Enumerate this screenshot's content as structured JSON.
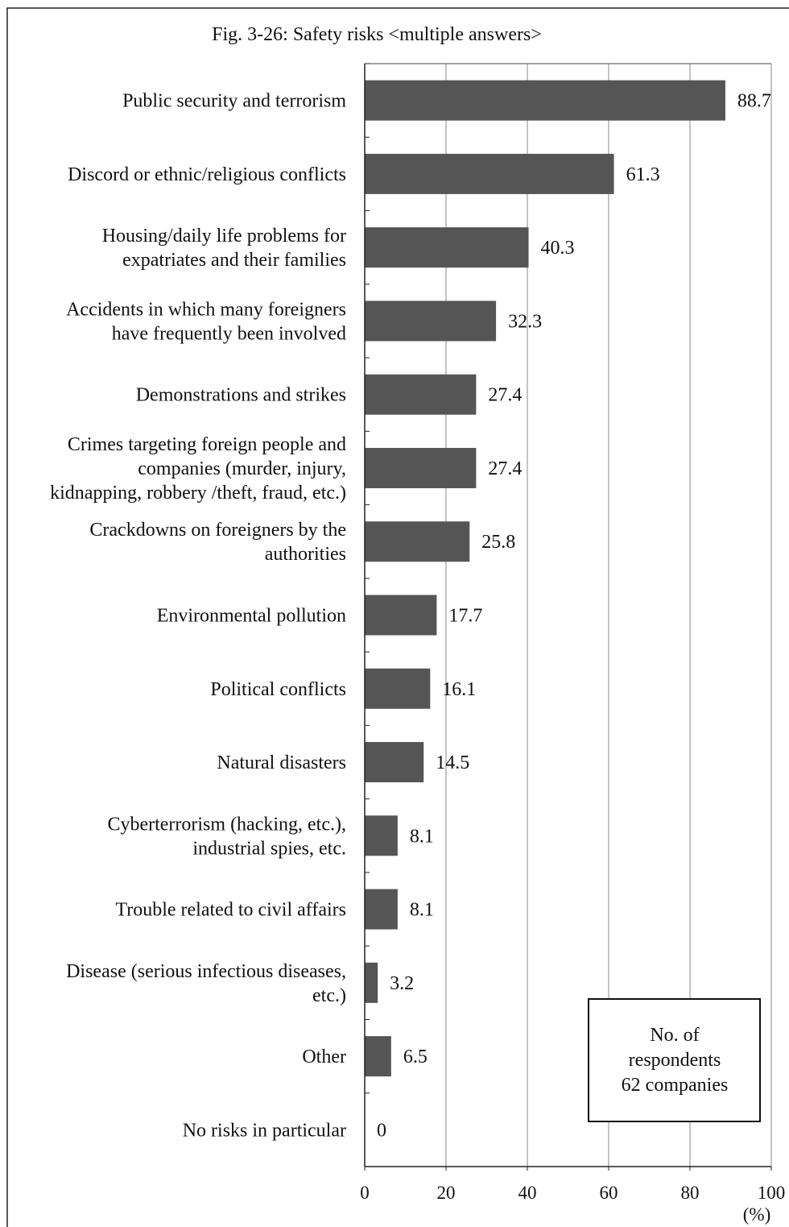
{
  "chart_data": {
    "type": "bar",
    "orientation": "horizontal",
    "title": "Fig. 3-26: Safety risks <multiple answers>",
    "unit_label": "(%)",
    "categories": [
      [
        "Public security and terrorism"
      ],
      [
        "Discord or ethnic/religious conflicts"
      ],
      [
        "Housing/daily life problems for",
        "expatriates and their families"
      ],
      [
        "Accidents in which many foreigners",
        "have frequently been involved"
      ],
      [
        "Demonstrations and strikes"
      ],
      [
        "Crimes targeting foreign people and",
        "companies (murder, injury,",
        "kidnapping, robbery /theft, fraud, etc.)"
      ],
      [
        "Crackdowns on foreigners by the",
        "authorities"
      ],
      [
        "Environmental pollution"
      ],
      [
        "Political conflicts"
      ],
      [
        "Natural disasters"
      ],
      [
        "Cyberterrorism (hacking, etc.),",
        "industrial spies, etc."
      ],
      [
        "Trouble related to civil affairs"
      ],
      [
        "Disease (serious infectious diseases,",
        "etc.)"
      ],
      [
        "Other"
      ],
      [
        "No risks in particular"
      ]
    ],
    "values": [
      88.7,
      61.3,
      40.3,
      32.3,
      27.4,
      27.4,
      25.8,
      17.7,
      16.1,
      14.5,
      8.1,
      8.1,
      3.2,
      6.5,
      0
    ],
    "value_labels": [
      "88.7",
      "61.3",
      "40.3",
      "32.3",
      "27.4",
      "27.4",
      "25.8",
      "17.7",
      "16.1",
      "14.5",
      "8.1",
      "8.1",
      "3.2",
      "6.5",
      "0"
    ],
    "xlim": [
      0,
      100
    ],
    "xticks": [
      0,
      20,
      40,
      60,
      80,
      100
    ],
    "grid": "vertical",
    "bar_color": "#555555",
    "note": {
      "lines": [
        "No. of",
        "respondents",
        "62 companies"
      ],
      "placement": "bottom-right"
    }
  }
}
